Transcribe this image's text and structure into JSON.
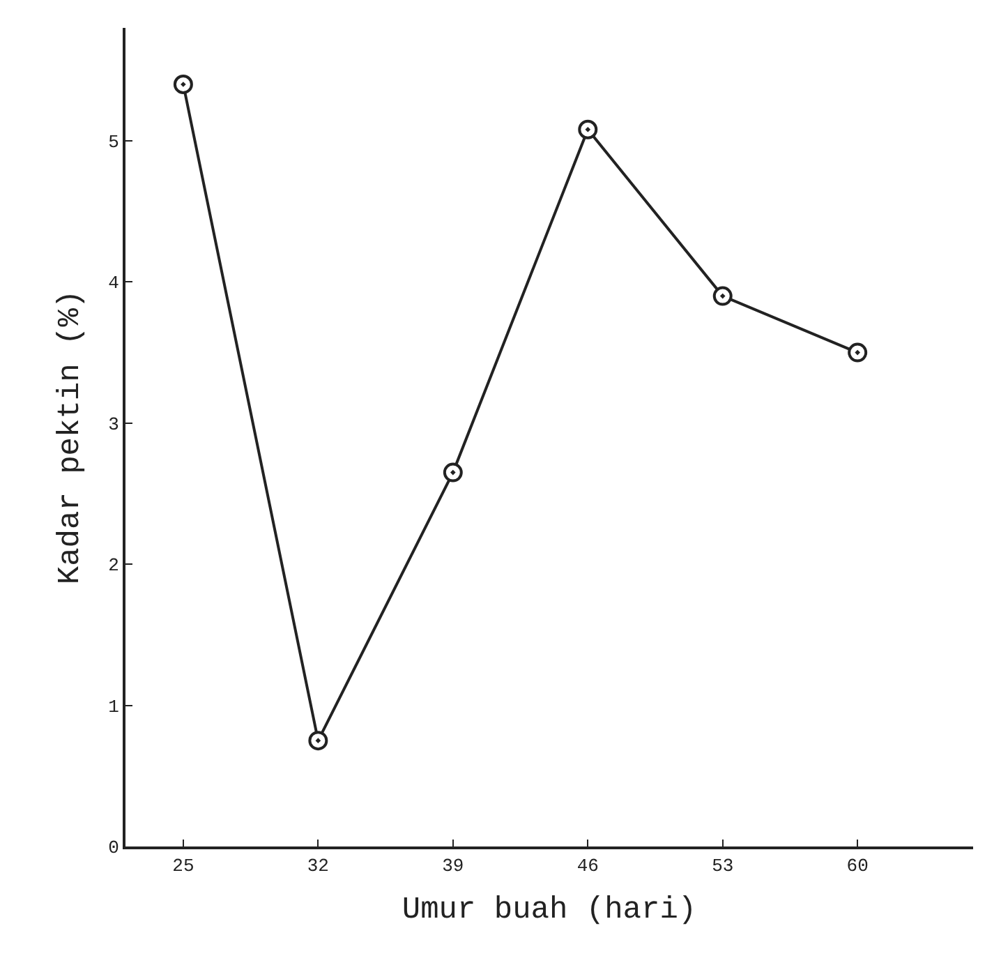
{
  "chart_data": {
    "type": "line",
    "xlabel": "Umur buah (hari)",
    "ylabel": "Kadar pektin (%)",
    "x": [
      25,
      32,
      39,
      46,
      53,
      60
    ],
    "series": [
      {
        "color": "#222222",
        "values": [
          5.4,
          0.75,
          2.65,
          5.08,
          3.9,
          3.5
        ]
      }
    ],
    "xlim": [
      22,
      66
    ],
    "xticks": [
      25,
      32,
      39,
      46,
      53,
      60
    ],
    "ylim": [
      0,
      5.8
    ],
    "yticks": [
      0,
      1,
      2,
      3,
      4,
      5
    ],
    "legend": false,
    "marker": "circle",
    "line_style": "solid"
  }
}
